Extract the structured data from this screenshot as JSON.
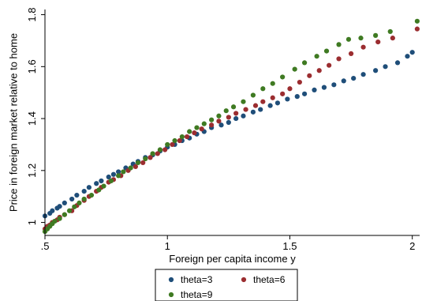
{
  "chart_data": {
    "type": "scatter",
    "title": "",
    "xlabel": "Foreign per capita income y",
    "ylabel": "Price in foreign market relative to home",
    "xlim": [
      0.5,
      2.03
    ],
    "ylim": [
      0.95,
      1.82
    ],
    "xticks": [
      {
        "value": 0.5,
        "label": ".5"
      },
      {
        "value": 1,
        "label": "1"
      },
      {
        "value": 1.5,
        "label": "1.5"
      },
      {
        "value": 2,
        "label": "2"
      }
    ],
    "yticks": [
      {
        "value": 1.0,
        "label": "1"
      },
      {
        "value": 1.2,
        "label": "1.2"
      },
      {
        "value": 1.4,
        "label": "1.4"
      },
      {
        "value": 1.6,
        "label": "1.6"
      },
      {
        "value": 1.8,
        "label": "1.8"
      }
    ],
    "grid": false,
    "legend_position": "bottom",
    "series": [
      {
        "name": "theta=3",
        "color": "#1f4e79",
        "x": [
          0.5,
          0.52,
          0.53,
          0.55,
          0.56,
          0.58,
          0.61,
          0.63,
          0.66,
          0.68,
          0.71,
          0.73,
          0.76,
          0.78,
          0.8,
          0.83,
          0.86,
          0.88,
          0.91,
          0.94,
          0.97,
          1.0,
          1.03,
          1.06,
          1.09,
          1.12,
          1.15,
          1.18,
          1.22,
          1.25,
          1.28,
          1.31,
          1.35,
          1.38,
          1.42,
          1.45,
          1.49,
          1.53,
          1.56,
          1.6,
          1.64,
          1.68,
          1.72,
          1.76,
          1.8,
          1.85,
          1.89,
          1.94,
          1.98,
          2.0
        ],
        "y": [
          1.025,
          1.035,
          1.045,
          1.055,
          1.062,
          1.075,
          1.09,
          1.105,
          1.12,
          1.135,
          1.15,
          1.16,
          1.175,
          1.185,
          1.195,
          1.21,
          1.225,
          1.235,
          1.25,
          1.26,
          1.275,
          1.29,
          1.3,
          1.315,
          1.325,
          1.34,
          1.35,
          1.365,
          1.375,
          1.385,
          1.4,
          1.41,
          1.425,
          1.435,
          1.45,
          1.46,
          1.475,
          1.485,
          1.495,
          1.51,
          1.52,
          1.53,
          1.545,
          1.555,
          1.57,
          1.585,
          1.6,
          1.615,
          1.64,
          1.655
        ]
      },
      {
        "name": "theta=6",
        "color": "#9b2d30",
        "x": [
          0.5,
          0.51,
          0.52,
          0.53,
          0.55,
          0.56,
          0.58,
          0.61,
          0.63,
          0.66,
          0.68,
          0.71,
          0.73,
          0.76,
          0.78,
          0.81,
          0.84,
          0.87,
          0.9,
          0.93,
          0.96,
          0.99,
          1.02,
          1.05,
          1.08,
          1.11,
          1.14,
          1.18,
          1.21,
          1.25,
          1.28,
          1.32,
          1.36,
          1.39,
          1.43,
          1.47,
          1.5,
          1.54,
          1.58,
          1.62,
          1.66,
          1.7,
          1.75,
          1.8,
          1.86,
          1.92,
          2.02
        ],
        "y": [
          0.975,
          0.985,
          0.99,
          1.0,
          1.01,
          1.02,
          1.03,
          1.045,
          1.065,
          1.085,
          1.1,
          1.12,
          1.135,
          1.155,
          1.165,
          1.18,
          1.2,
          1.215,
          1.23,
          1.25,
          1.265,
          1.28,
          1.3,
          1.315,
          1.33,
          1.345,
          1.36,
          1.375,
          1.39,
          1.405,
          1.42,
          1.435,
          1.45,
          1.465,
          1.48,
          1.495,
          1.515,
          1.54,
          1.565,
          1.585,
          1.605,
          1.63,
          1.65,
          1.675,
          1.695,
          1.71,
          1.745
        ]
      },
      {
        "name": "theta=9",
        "color": "#3f7a22",
        "x": [
          0.5,
          0.51,
          0.52,
          0.53,
          0.54,
          0.56,
          0.58,
          0.6,
          0.62,
          0.64,
          0.66,
          0.69,
          0.72,
          0.74,
          0.77,
          0.8,
          0.82,
          0.85,
          0.88,
          0.91,
          0.94,
          0.97,
          1.0,
          1.03,
          1.06,
          1.09,
          1.12,
          1.15,
          1.18,
          1.21,
          1.24,
          1.27,
          1.31,
          1.35,
          1.39,
          1.43,
          1.47,
          1.52,
          1.56,
          1.61,
          1.65,
          1.7,
          1.74,
          1.79,
          1.85,
          1.91,
          2.02
        ],
        "y": [
          0.965,
          0.975,
          0.985,
          0.995,
          1.005,
          1.015,
          1.03,
          1.045,
          1.06,
          1.075,
          1.09,
          1.105,
          1.125,
          1.14,
          1.16,
          1.18,
          1.195,
          1.21,
          1.23,
          1.245,
          1.265,
          1.28,
          1.3,
          1.315,
          1.33,
          1.35,
          1.365,
          1.38,
          1.395,
          1.41,
          1.43,
          1.445,
          1.465,
          1.49,
          1.515,
          1.535,
          1.56,
          1.59,
          1.615,
          1.64,
          1.66,
          1.685,
          1.705,
          1.71,
          1.72,
          1.735,
          1.775
        ]
      }
    ]
  }
}
